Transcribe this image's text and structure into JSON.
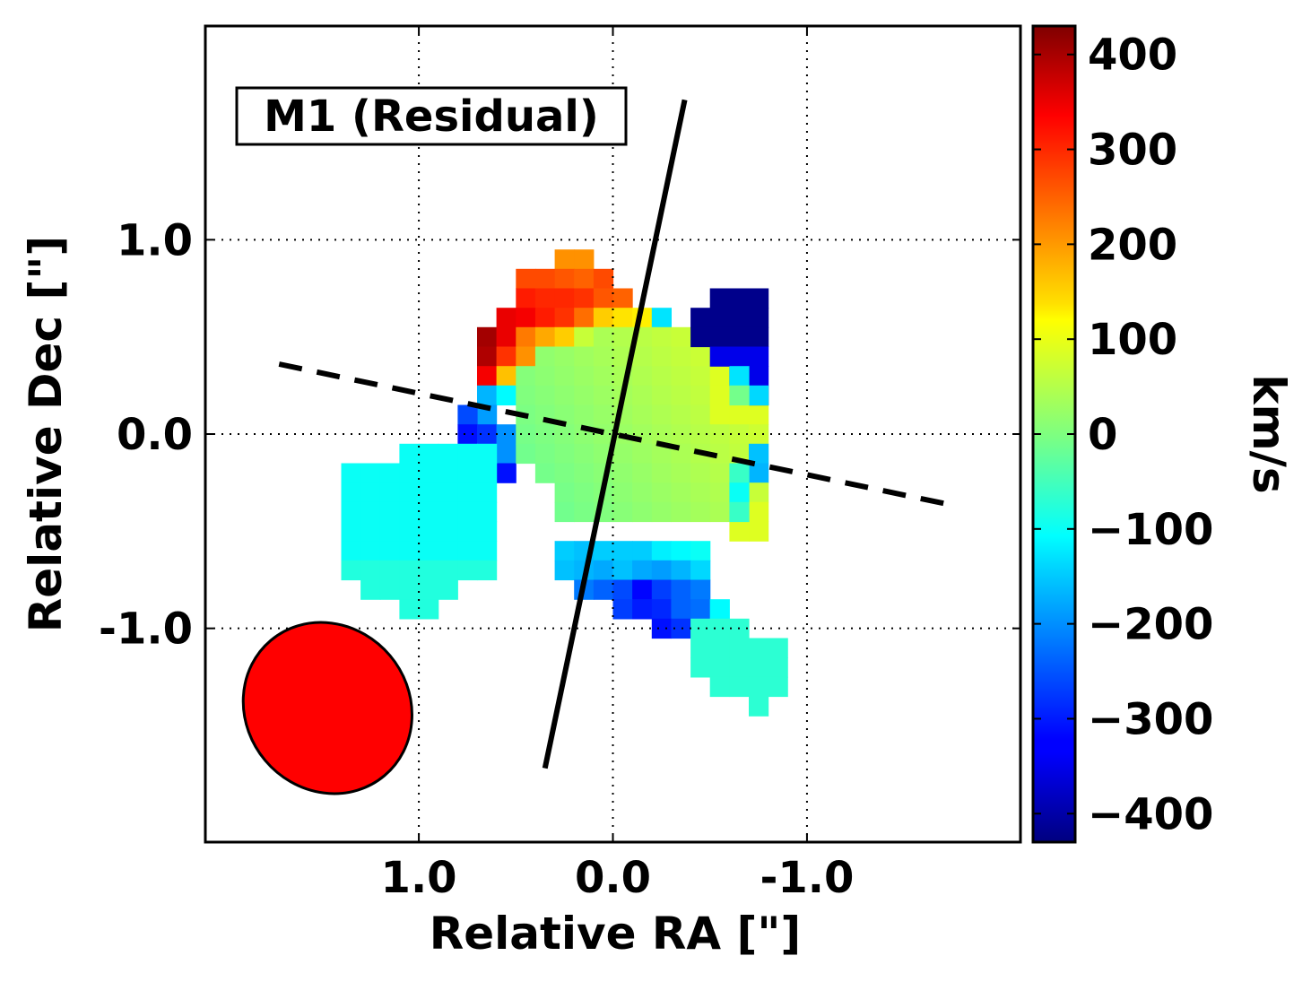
{
  "chart_data": {
    "type": "heatmap",
    "title": "M1 (Residual)",
    "xlabel": "Relative RA [\"]",
    "ylabel": "Relative Dec [\"]",
    "xlim": [
      2.1,
      -2.1
    ],
    "ylim": [
      -2.1,
      2.1
    ],
    "grid": true,
    "x_ticks": [
      {
        "value": 1.0,
        "label": "1.0"
      },
      {
        "value": 0.0,
        "label": "0.0"
      },
      {
        "value": -1.0,
        "label": "-1.0"
      }
    ],
    "y_ticks": [
      {
        "value": 1.0,
        "label": "1.0"
      },
      {
        "value": 0.0,
        "label": "0.0"
      },
      {
        "value": -1.0,
        "label": "-1.0"
      }
    ],
    "pixel_size_arcsec": 0.1,
    "colorbar": {
      "label": "km/s",
      "colormap": "jet",
      "vmin": -430,
      "vmax": 430,
      "ticks": [
        {
          "value": 400,
          "label": "400"
        },
        {
          "value": 300,
          "label": "300"
        },
        {
          "value": 200,
          "label": "200"
        },
        {
          "value": 100,
          "label": "100"
        },
        {
          "value": 0,
          "label": "0"
        },
        {
          "value": -100,
          "label": "−100"
        },
        {
          "value": -200,
          "label": "−200"
        },
        {
          "value": -300,
          "label": "−300"
        },
        {
          "value": -400,
          "label": "−400"
        }
      ]
    },
    "velocity_map": {
      "origin_ra": 0.9,
      "origin_dec": 0.95,
      "step": 0.1,
      "rows": [
        [
          null,
          null,
          null,
          null,
          null,
          null,
          null,
          null,
          null,
          null,
          null,
          null,
          null,
          null,
          null,
          null,
          null,
          null,
          null,
          null,
          null,
          null,
          null,
          null,
          null,
          null,
          null,
          null,
          null,
          null,
          null,
          null,
          null,
          null,
          null,
          null,
          null,
          null,
          null,
          null,
          null,
          null,
          null,
          null,
          null,
          null,
          null,
          null
        ],
        [
          null,
          null,
          null,
          null,
          null,
          null,
          null,
          null,
          null,
          null,
          null,
          null,
          null,
          null,
          null,
          null,
          null,
          null,
          null,
          null,
          null,
          null,
          null,
          null,
          null,
          null,
          null,
          null,
          null,
          null,
          null,
          null,
          null,
          null,
          null,
          null,
          null,
          null,
          null,
          null,
          null,
          null,
          null,
          null,
          null,
          null,
          null,
          null
        ],
        [
          null,
          null,
          null,
          null,
          null,
          null,
          null,
          null,
          null,
          null,
          null,
          null,
          null,
          null,
          null,
          null,
          null,
          null,
          null,
          null,
          null,
          null,
          null,
          null,
          null,
          null,
          null,
          null,
          null,
          null,
          null,
          null,
          null,
          null,
          null,
          null,
          null,
          null,
          null,
          null,
          null,
          null,
          null,
          null,
          null,
          null,
          null,
          null
        ]
      ]
    },
    "major_axis": {
      "style": "solid",
      "from": [
        0.35,
        -1.72
      ],
      "to": [
        -0.37,
        1.72
      ]
    },
    "minor_axis": {
      "style": "dashed",
      "from": [
        1.72,
        0.36
      ],
      "to": [
        -1.72,
        -0.36
      ]
    },
    "beam": {
      "center": [
        1.47,
        -1.41
      ],
      "major": 0.91,
      "minor": 0.84,
      "pa_deg": -40,
      "color": "#ff0000"
    }
  }
}
